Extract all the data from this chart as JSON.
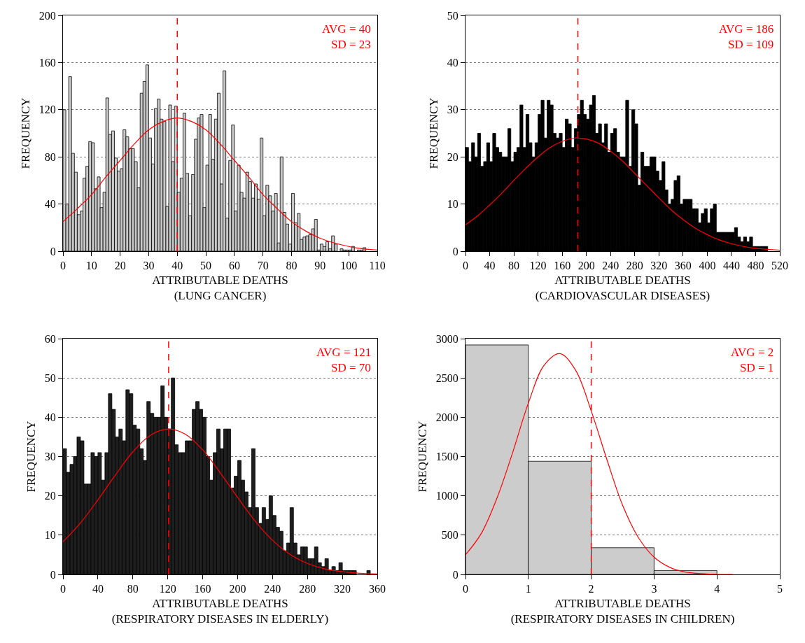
{
  "chart_data": [
    {
      "type": "histogram",
      "xlabel": "ATTRIBUTABLE DEATHS\n(LUNG CANCER)",
      "ylabel": "FREQUENCY",
      "annotations": [
        "AVG = 40",
        "SD = 23"
      ],
      "color": "#c8c8c8",
      "grid": "y",
      "xlim": [
        0,
        110
      ],
      "xticks": [
        0,
        10,
        20,
        30,
        40,
        50,
        60,
        70,
        80,
        90,
        100,
        110
      ],
      "ylim": [
        0,
        200
      ],
      "yticks": [
        0,
        40,
        80,
        120,
        160,
        200
      ],
      "bins": [
        0,
        1,
        2,
        3,
        4,
        5,
        6,
        7,
        8,
        9,
        10,
        11,
        12,
        13,
        14,
        15,
        16,
        17,
        18,
        19,
        20,
        21,
        22,
        23,
        24,
        25,
        26,
        27,
        28,
        29,
        30,
        31,
        32,
        33,
        34,
        35,
        36,
        37,
        38,
        39,
        40,
        41,
        42,
        43,
        44,
        45,
        46,
        47,
        48,
        49,
        50,
        51,
        52,
        53,
        54,
        55,
        56,
        57,
        58,
        59,
        60,
        61,
        62,
        63,
        64,
        65,
        66,
        67,
        68,
        69,
        70,
        71,
        72,
        73,
        74,
        75,
        76,
        77,
        78,
        79,
        80,
        81,
        82,
        83,
        84,
        85,
        86,
        87,
        88,
        89,
        90,
        91,
        92,
        93,
        94,
        95,
        96,
        97,
        98,
        99,
        100,
        101,
        102,
        103,
        104,
        105,
        106,
        107,
        108,
        109,
        110
      ],
      "values": [
        120,
        40,
        148,
        83,
        67,
        31,
        34,
        62,
        72,
        93,
        92,
        53,
        63,
        37,
        50,
        130,
        99,
        102,
        79,
        68,
        70,
        103,
        97,
        87,
        87,
        76,
        54,
        134,
        144,
        158,
        96,
        74,
        121,
        129,
        112,
        110,
        38,
        124,
        76,
        123,
        50,
        62,
        117,
        66,
        30,
        65,
        95,
        113,
        116,
        37,
        73,
        116,
        78,
        112,
        134,
        57,
        153,
        28,
        77,
        107,
        34,
        73,
        50,
        45,
        67,
        59,
        45,
        57,
        44,
        96,
        30,
        56,
        47,
        34,
        49,
        7,
        80,
        33,
        23,
        6,
        49,
        24,
        32,
        10,
        12,
        13,
        14,
        19,
        27,
        1,
        6,
        4,
        8,
        2,
        13,
        6,
        0,
        2,
        1,
        1,
        1,
        4,
        0,
        1,
        1,
        3,
        0,
        0,
        0,
        0
      ],
      "series": [
        {
          "type": "line",
          "color": "#ff0000",
          "x": [
            0,
            5,
            10,
            15,
            20,
            25,
            30,
            35,
            40,
            45,
            50,
            55,
            60,
            65,
            70,
            75,
            80,
            85,
            90,
            95,
            100,
            105,
            110
          ],
          "values": [
            25,
            36,
            48,
            63,
            77,
            91,
            103,
            110,
            113,
            110,
            103,
            91,
            77,
            63,
            48,
            36,
            25,
            17,
            11,
            7,
            4,
            2,
            1
          ]
        }
      ],
      "ref_lines": [
        {
          "axis": "x",
          "value": 40,
          "color": "#ff0000",
          "line_style": "dashed"
        }
      ]
    },
    {
      "type": "histogram",
      "xlabel": "ATTRIBUTABLE DEATHS\n(CARDIOVASCULAR DISEASES)",
      "ylabel": "FREQUENCY",
      "annotations": [
        "AVG = 186",
        "SD = 109"
      ],
      "color": "#000000",
      "grid": "y",
      "xlim": [
        0,
        520
      ],
      "xticks": [
        0,
        40,
        80,
        120,
        160,
        200,
        240,
        280,
        320,
        360,
        400,
        440,
        480,
        520
      ],
      "ylim": [
        0,
        50
      ],
      "yticks": [
        0,
        10,
        20,
        30,
        40,
        50
      ],
      "bins": [
        0,
        5,
        10,
        15,
        20,
        25,
        30,
        35,
        40,
        45,
        50,
        55,
        60,
        65,
        70,
        75,
        80,
        85,
        90,
        95,
        100,
        105,
        110,
        115,
        120,
        125,
        130,
        135,
        140,
        145,
        150,
        155,
        160,
        165,
        170,
        175,
        180,
        185,
        190,
        195,
        200,
        205,
        210,
        215,
        220,
        225,
        230,
        235,
        240,
        245,
        250,
        255,
        260,
        265,
        270,
        275,
        280,
        285,
        290,
        295,
        300,
        305,
        310,
        315,
        320,
        325,
        330,
        335,
        340,
        345,
        350,
        355,
        360,
        365,
        370,
        375,
        380,
        385,
        390,
        395,
        400,
        405,
        410,
        415,
        420,
        425,
        430,
        435,
        440,
        445,
        450,
        455,
        460,
        465,
        470,
        475,
        480,
        485,
        490,
        495,
        500
      ],
      "values": [
        22,
        19,
        23,
        20,
        25,
        18,
        19,
        23,
        19,
        25,
        22,
        21,
        20,
        20,
        26,
        19,
        21,
        22,
        31,
        22,
        29,
        23,
        20,
        23,
        29,
        32,
        24,
        32,
        31,
        25,
        24,
        25,
        22,
        28,
        27,
        22,
        26,
        29,
        32,
        29,
        28,
        31,
        33,
        25,
        27,
        23,
        27,
        21,
        25,
        26,
        21,
        20,
        20,
        32,
        18,
        30,
        27,
        14,
        21,
        18,
        18,
        20,
        20,
        17,
        15,
        19,
        13,
        10,
        11,
        15,
        16,
        10,
        11,
        11,
        11,
        9,
        9,
        6,
        8,
        9,
        6,
        9,
        10,
        4,
        4,
        4,
        4,
        4,
        4,
        5,
        3,
        2,
        3,
        2,
        3,
        1,
        1,
        1,
        1,
        1
      ],
      "series": [
        {
          "type": "line",
          "color": "#ff0000",
          "x": [
            0,
            20,
            40,
            60,
            80,
            100,
            120,
            140,
            160,
            180,
            186,
            200,
            220,
            240,
            260,
            280,
            300,
            320,
            340,
            360,
            380,
            400,
            420,
            440,
            460,
            480,
            500,
            520
          ],
          "values": [
            5.6,
            7.5,
            9.8,
            12.3,
            15.0,
            17.6,
            20.0,
            22.0,
            23.3,
            24.0,
            24.0,
            23.8,
            22.9,
            21.2,
            19.1,
            16.5,
            13.9,
            11.3,
            8.8,
            6.7,
            4.9,
            3.5,
            2.4,
            1.6,
            1.0,
            0.6,
            0.4,
            0.2
          ]
        }
      ],
      "ref_lines": [
        {
          "axis": "x",
          "value": 186,
          "color": "#ff0000",
          "line_style": "dashed"
        }
      ]
    },
    {
      "type": "histogram",
      "xlabel": "ATTRIBUTABLE DEATHS\n(RESPIRATORY DISEASES IN ELDERLY)",
      "ylabel": "FREQUENCY",
      "annotations": [
        "AVG = 121",
        "SD = 70"
      ],
      "color": "#1e1e1e",
      "grid": "y",
      "xlim": [
        0,
        360
      ],
      "xticks": [
        0,
        40,
        80,
        120,
        160,
        200,
        240,
        280,
        320,
        360
      ],
      "ylim": [
        0,
        60
      ],
      "yticks": [
        0,
        10,
        20,
        30,
        40,
        50,
        60
      ],
      "bins": [
        0,
        4,
        8,
        12,
        16,
        20,
        24,
        28,
        32,
        36,
        40,
        44,
        48,
        52,
        56,
        60,
        64,
        68,
        72,
        76,
        80,
        84,
        88,
        92,
        96,
        100,
        104,
        108,
        112,
        116,
        120,
        124,
        128,
        132,
        136,
        140,
        144,
        148,
        152,
        156,
        160,
        164,
        168,
        172,
        176,
        180,
        184,
        188,
        192,
        196,
        200,
        204,
        208,
        212,
        216,
        220,
        224,
        228,
        232,
        236,
        240,
        244,
        248,
        252,
        256,
        260,
        264,
        268,
        272,
        276,
        280,
        284,
        288,
        292,
        296,
        300,
        304,
        308,
        312,
        316,
        320,
        324,
        328,
        332,
        336,
        340,
        344,
        348,
        352,
        356,
        360
      ],
      "values": [
        32,
        26,
        28,
        30,
        35,
        34,
        23,
        23,
        31,
        30,
        31,
        24,
        31,
        46,
        42,
        35,
        37,
        34,
        47,
        46,
        38,
        37,
        32,
        29,
        44,
        41,
        40,
        40,
        48,
        40,
        37,
        50,
        33,
        31,
        31,
        34,
        34,
        42,
        44,
        42,
        40,
        30,
        24,
        31,
        37,
        32,
        37,
        37,
        22,
        25,
        29,
        24,
        21,
        17,
        32,
        17,
        13,
        17,
        14,
        20,
        15,
        12,
        11,
        6,
        8,
        17,
        8,
        5,
        7,
        7,
        4,
        4,
        7,
        3,
        2,
        4,
        1,
        2,
        1,
        3,
        1,
        1,
        1,
        1,
        0,
        0,
        0,
        1,
        0,
        0
      ],
      "series": [
        {
          "type": "line",
          "color": "#ff0000",
          "x": [
            0,
            20,
            40,
            60,
            80,
            100,
            121,
            140,
            160,
            180,
            200,
            220,
            240,
            260,
            280,
            300,
            320,
            340,
            360
          ],
          "values": [
            8.3,
            13.1,
            19.0,
            25.3,
            31.2,
            35.4,
            37.0,
            35.7,
            31.7,
            25.9,
            19.6,
            13.6,
            8.7,
            5.1,
            2.8,
            1.4,
            0.7,
            0.3,
            0.1
          ]
        }
      ],
      "ref_lines": [
        {
          "axis": "x",
          "value": 121,
          "color": "#ff0000",
          "line_style": "dashed"
        }
      ]
    },
    {
      "type": "histogram",
      "xlabel": "ATTRIBUTABLE DEATHS\n(RESPIRATORY DISEASES IN CHILDREN)",
      "ylabel": "FREQUENCY",
      "annotations": [
        "AVG = 2",
        "SD = 1"
      ],
      "color": "#cccccc",
      "grid": "y",
      "xlim": [
        0,
        5
      ],
      "xticks": [
        0,
        1,
        2,
        3,
        4,
        5
      ],
      "ylim": [
        0,
        3000
      ],
      "yticks": [
        0,
        500,
        1000,
        1500,
        2000,
        2500,
        3000
      ],
      "bins": [
        0,
        1,
        2,
        3,
        4
      ],
      "values": [
        2920,
        1440,
        340,
        50
      ],
      "series": [
        {
          "type": "line",
          "color": "#ff0000",
          "x": [
            0,
            0.25,
            0.5,
            0.75,
            1,
            1.25,
            1.5,
            1.75,
            2,
            2.25,
            2.5,
            2.75,
            3,
            3.25,
            3.5,
            3.75,
            4,
            4.25
          ],
          "values": [
            250,
            520,
            970,
            1550,
            2180,
            2660,
            2810,
            2600,
            2080,
            1460,
            880,
            470,
            220,
            90,
            30,
            10,
            0,
            0
          ]
        }
      ],
      "ref_lines": [
        {
          "axis": "x",
          "value": 2,
          "color": "#ff0000",
          "line_style": "dashed"
        }
      ]
    }
  ]
}
